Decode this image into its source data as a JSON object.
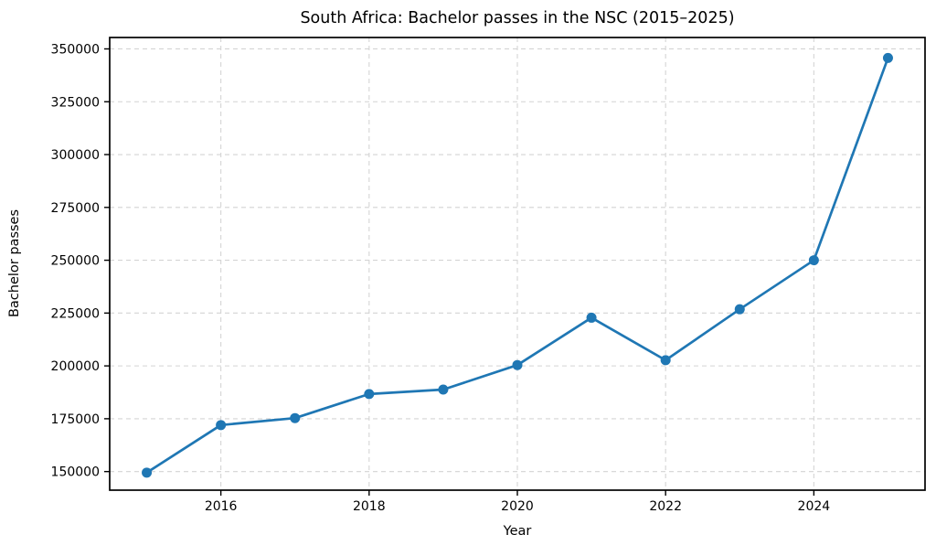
{
  "figure": {
    "background": "#ffffff"
  },
  "chart_data": {
    "type": "line",
    "title": "South Africa: Bachelor passes in the NSC (2015–2025)",
    "xlabel": "Year",
    "ylabel": "Bachelor passes",
    "x": [
      2015,
      2016,
      2017,
      2018,
      2019,
      2020,
      2021,
      2022,
      2023,
      2024,
      2025
    ],
    "series": [
      {
        "name": "Bachelor passes",
        "color": "#1f77b4",
        "values": [
          149500,
          172000,
          175300,
          186700,
          188800,
          200400,
          222800,
          202700,
          226800,
          250000,
          345700
        ]
      }
    ],
    "xticks": [
      2016,
      2018,
      2020,
      2022,
      2024
    ],
    "yticks": [
      150000,
      175000,
      200000,
      225000,
      250000,
      275000,
      300000,
      325000,
      350000
    ],
    "xlim": [
      2014.5,
      2025.5
    ],
    "ylim": [
      141200,
      355400
    ],
    "grid": true,
    "grid_color": "#d4d4d4",
    "grid_dash": "5,4",
    "axis_color": "#000000",
    "marker": "circle",
    "marker_radius": 5.5,
    "line_width": 2.7,
    "legend_position": "none"
  }
}
